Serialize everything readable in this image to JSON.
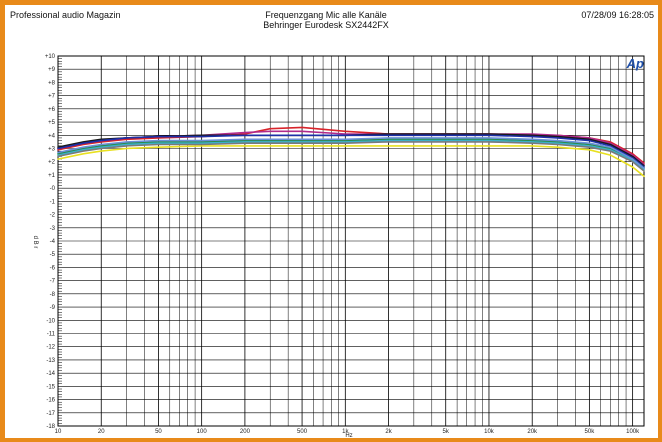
{
  "header": {
    "brand": "Professional audio Magazin",
    "datetime": "07/28/09 16:28:05",
    "title": "Frequenzgang Mic alle Kanäle",
    "subtitle": "Behringer Eurodesk SX2442FX",
    "logo_text": "Ap"
  },
  "colors": {
    "frame": "#e88a1a",
    "grid": "#000000",
    "logo": "#1f4fa8"
  },
  "chart_data": {
    "type": "line",
    "title": "Frequenzgang Mic alle Kanäle",
    "subtitle": "Behringer Eurodesk SX2442FX",
    "xlabel": "Hz",
    "ylabel": "d B r",
    "x_scale": "log",
    "xlim": [
      10,
      120000
    ],
    "ylim": [
      -18,
      10
    ],
    "grid": true,
    "x_ticks": [
      {
        "value": 10,
        "label": "10"
      },
      {
        "value": 20,
        "label": "20"
      },
      {
        "value": 50,
        "label": "50"
      },
      {
        "value": 100,
        "label": "100"
      },
      {
        "value": 200,
        "label": "200"
      },
      {
        "value": 500,
        "label": "500"
      },
      {
        "value": 1000,
        "label": "1k"
      },
      {
        "value": 2000,
        "label": "2k"
      },
      {
        "value": 5000,
        "label": "5k"
      },
      {
        "value": 10000,
        "label": "10k"
      },
      {
        "value": 20000,
        "label": "20k"
      },
      {
        "value": 50000,
        "label": "50k"
      },
      {
        "value": 100000,
        "label": "100k"
      }
    ],
    "y_ticks": [
      {
        "value": 10,
        "label": "+10"
      },
      {
        "value": 9,
        "label": "+9"
      },
      {
        "value": 8,
        "label": "+8"
      },
      {
        "value": 7,
        "label": "+7"
      },
      {
        "value": 6,
        "label": "+6"
      },
      {
        "value": 5,
        "label": "+5"
      },
      {
        "value": 4,
        "label": "+4"
      },
      {
        "value": 3,
        "label": "+3"
      },
      {
        "value": 2,
        "label": "+2"
      },
      {
        "value": 1,
        "label": "+1"
      },
      {
        "value": 0,
        "label": "-0"
      },
      {
        "value": -1,
        "label": "-1"
      },
      {
        "value": -2,
        "label": "-2"
      },
      {
        "value": -3,
        "label": "-3"
      },
      {
        "value": -4,
        "label": "-4"
      },
      {
        "value": -5,
        "label": "-5"
      },
      {
        "value": -6,
        "label": "-6"
      },
      {
        "value": -7,
        "label": "-7"
      },
      {
        "value": -8,
        "label": "-8"
      },
      {
        "value": -9,
        "label": "-9"
      },
      {
        "value": -10,
        "label": "-10"
      },
      {
        "value": -11,
        "label": "-11"
      },
      {
        "value": -12,
        "label": "-12"
      },
      {
        "value": -13,
        "label": "-13"
      },
      {
        "value": -14,
        "label": "-14"
      },
      {
        "value": -15,
        "label": "-15"
      },
      {
        "value": -16,
        "label": "-16"
      },
      {
        "value": -17,
        "label": "-17"
      },
      {
        "value": -18,
        "label": "-18"
      }
    ],
    "x": [
      10,
      15,
      20,
      30,
      50,
      100,
      200,
      300,
      500,
      1000,
      2000,
      5000,
      10000,
      20000,
      30000,
      50000,
      70000,
      100000,
      120000
    ],
    "series": [
      {
        "color": "#d8242b",
        "values": [
          2.9,
          3.3,
          3.5,
          3.7,
          3.8,
          3.9,
          4.1,
          4.5,
          4.6,
          4.3,
          4.1,
          4.1,
          4.1,
          4.0,
          4.0,
          3.8,
          3.5,
          2.6,
          1.9
        ]
      },
      {
        "color": "#b02a8c",
        "values": [
          3.0,
          3.4,
          3.6,
          3.8,
          3.9,
          4.0,
          4.2,
          4.3,
          4.3,
          4.1,
          4.1,
          4.1,
          4.1,
          4.1,
          4.0,
          3.8,
          3.4,
          2.5,
          1.8
        ]
      },
      {
        "color": "#1a1a1a",
        "values": [
          3.1,
          3.5,
          3.7,
          3.8,
          3.9,
          4.0,
          4.0,
          4.0,
          4.0,
          4.0,
          4.1,
          4.1,
          4.1,
          4.0,
          3.9,
          3.7,
          3.3,
          2.4,
          1.7
        ]
      },
      {
        "color": "#1d2fa8",
        "values": [
          3.0,
          3.4,
          3.6,
          3.8,
          3.9,
          3.9,
          4.0,
          4.0,
          4.0,
          4.0,
          4.0,
          4.0,
          4.0,
          3.9,
          3.8,
          3.6,
          3.2,
          2.3,
          1.6
        ]
      },
      {
        "color": "#2a8a4a",
        "values": [
          2.6,
          3.0,
          3.2,
          3.4,
          3.5,
          3.5,
          3.6,
          3.6,
          3.6,
          3.6,
          3.7,
          3.7,
          3.7,
          3.6,
          3.5,
          3.3,
          3.0,
          2.2,
          1.5
        ]
      },
      {
        "color": "#3ab0c8",
        "values": [
          2.5,
          2.9,
          3.1,
          3.3,
          3.4,
          3.4,
          3.5,
          3.5,
          3.5,
          3.5,
          3.6,
          3.6,
          3.6,
          3.5,
          3.4,
          3.2,
          2.9,
          2.1,
          1.4
        ]
      },
      {
        "color": "#6a8fd8",
        "values": [
          2.7,
          3.1,
          3.3,
          3.5,
          3.6,
          3.6,
          3.7,
          3.7,
          3.7,
          3.7,
          3.8,
          3.8,
          3.8,
          3.7,
          3.6,
          3.4,
          3.1,
          2.2,
          1.5
        ]
      },
      {
        "color": "#e8e020",
        "values": [
          2.2,
          2.6,
          2.8,
          3.0,
          3.1,
          3.2,
          3.2,
          3.2,
          3.2,
          3.2,
          3.2,
          3.2,
          3.2,
          3.2,
          3.1,
          2.9,
          2.5,
          1.6,
          0.9
        ]
      },
      {
        "color": "#7a7a7a",
        "values": [
          2.4,
          2.8,
          3.0,
          3.2,
          3.3,
          3.3,
          3.4,
          3.4,
          3.4,
          3.4,
          3.5,
          3.5,
          3.5,
          3.4,
          3.3,
          3.1,
          2.8,
          2.0,
          1.3
        ]
      }
    ]
  }
}
